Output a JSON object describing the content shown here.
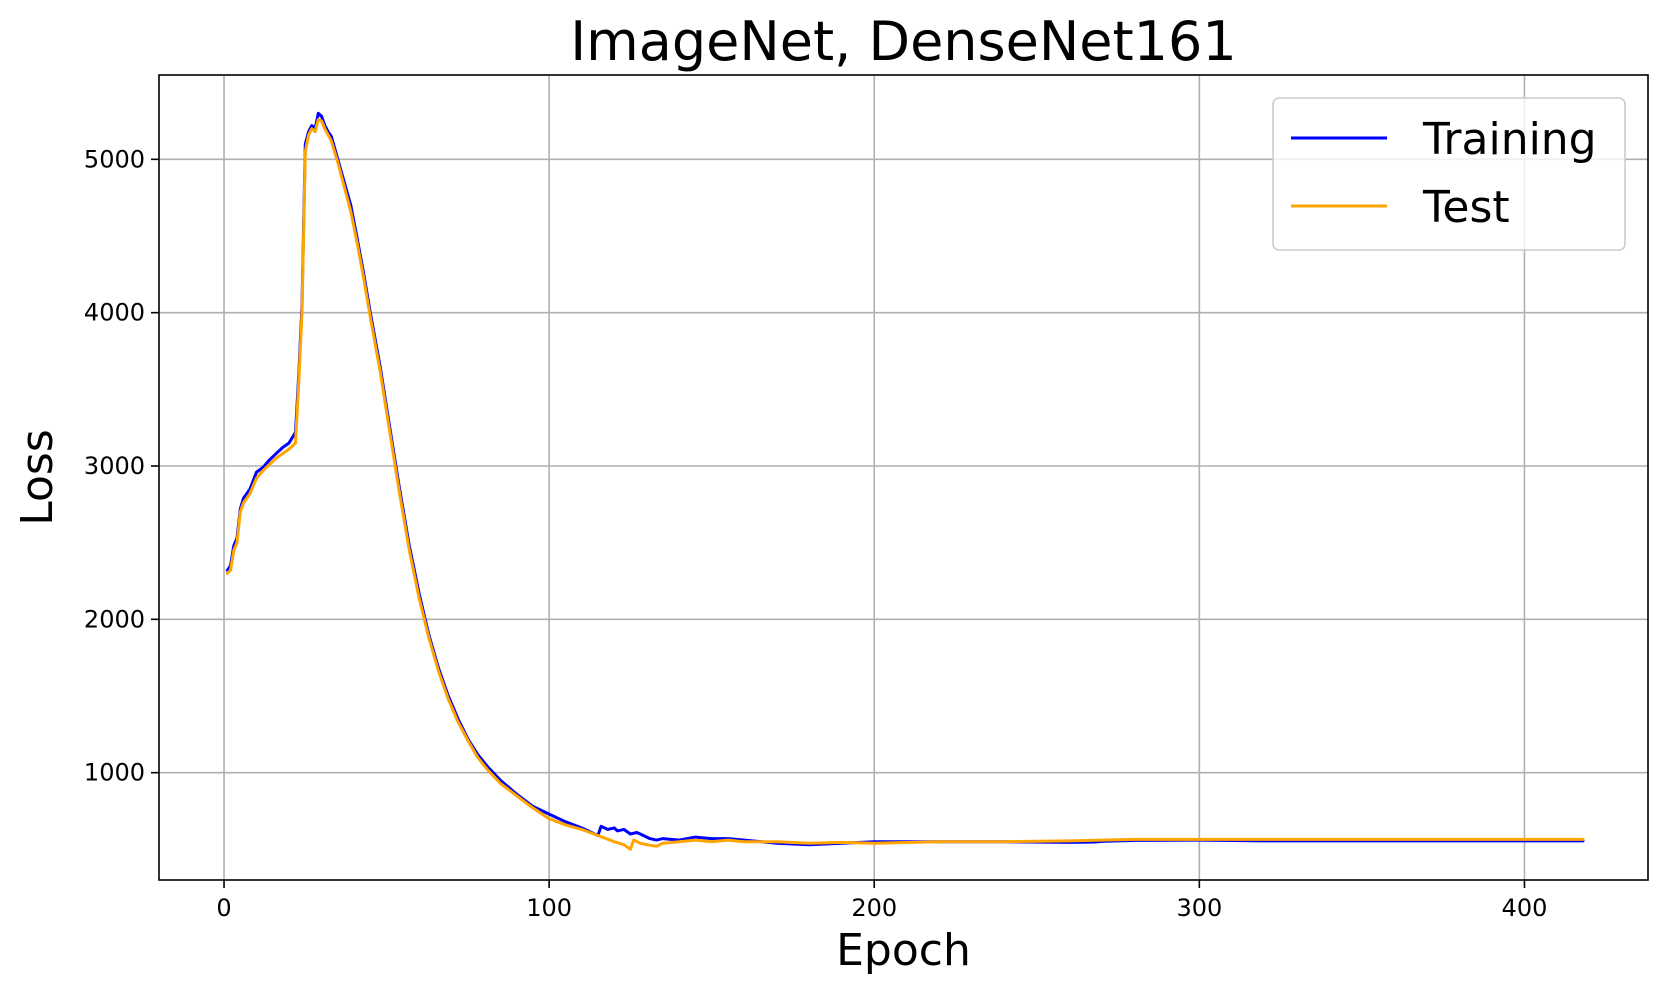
{
  "chart_data": {
    "type": "line",
    "title": "ImageNet, DenseNet161",
    "xlabel": "Epoch",
    "ylabel": "Loss",
    "xlim": [
      -20,
      438
    ],
    "ylim": [
      300,
      5550
    ],
    "xticks": [
      0,
      100,
      200,
      300,
      400
    ],
    "yticks": [
      1000,
      2000,
      3000,
      4000,
      5000
    ],
    "grid": true,
    "legend_position": "top-right",
    "series": [
      {
        "name": "Training",
        "color": "#0000ff",
        "x": [
          1,
          2,
          3,
          4,
          5,
          6,
          8,
          10,
          12,
          14,
          16,
          18,
          20,
          22,
          23,
          24,
          25,
          26,
          27,
          28,
          29,
          30,
          31,
          32,
          33,
          35,
          37,
          39,
          41,
          43,
          45,
          48,
          51,
          54,
          57,
          60,
          63,
          66,
          69,
          72,
          75,
          78,
          81,
          85,
          90,
          95,
          100,
          105,
          110,
          115,
          116,
          118,
          120,
          121,
          123,
          125,
          127,
          129,
          131,
          133,
          135,
          140,
          145,
          150,
          155,
          160,
          170,
          180,
          190,
          200,
          220,
          240,
          260,
          268,
          270,
          280,
          300,
          320,
          350,
          380,
          418
        ],
        "y": [
          2320,
          2350,
          2480,
          2530,
          2720,
          2790,
          2850,
          2960,
          2990,
          3040,
          3080,
          3120,
          3150,
          3220,
          3600,
          4050,
          5100,
          5180,
          5220,
          5200,
          5300,
          5280,
          5220,
          5180,
          5150,
          5000,
          4850,
          4700,
          4480,
          4250,
          4000,
          3650,
          3250,
          2850,
          2480,
          2170,
          1900,
          1680,
          1500,
          1350,
          1220,
          1120,
          1040,
          950,
          860,
          780,
          730,
          680,
          640,
          590,
          650,
          630,
          640,
          620,
          630,
          600,
          610,
          590,
          570,
          560,
          570,
          560,
          580,
          570,
          570,
          560,
          540,
          530,
          540,
          550,
          550,
          550,
          545,
          548,
          552,
          558,
          560,
          555,
          555,
          555,
          555
        ]
      },
      {
        "name": "Test",
        "color": "#ffa500",
        "x": [
          1,
          2,
          3,
          4,
          5,
          6,
          8,
          10,
          12,
          14,
          16,
          18,
          20,
          22,
          23,
          24,
          25,
          26,
          27,
          28,
          29,
          30,
          31,
          32,
          33,
          35,
          37,
          39,
          41,
          43,
          45,
          48,
          51,
          54,
          57,
          60,
          63,
          66,
          69,
          72,
          75,
          78,
          81,
          85,
          90,
          95,
          100,
          105,
          110,
          115,
          120,
          123,
          125,
          126,
          128,
          130,
          133,
          135,
          140,
          145,
          150,
          155,
          160,
          170,
          180,
          190,
          200,
          220,
          240,
          260,
          270,
          280,
          300,
          320,
          350,
          380,
          418
        ],
        "y": [
          2300,
          2320,
          2450,
          2500,
          2700,
          2760,
          2820,
          2920,
          2970,
          3010,
          3050,
          3080,
          3110,
          3150,
          3550,
          4000,
          5050,
          5160,
          5200,
          5180,
          5260,
          5250,
          5200,
          5160,
          5120,
          4980,
          4820,
          4660,
          4450,
          4220,
          3970,
          3620,
          3220,
          2820,
          2450,
          2140,
          1880,
          1660,
          1480,
          1330,
          1210,
          1100,
          1020,
          930,
          850,
          770,
          700,
          660,
          630,
          590,
          550,
          530,
          500,
          560,
          540,
          530,
          520,
          540,
          550,
          560,
          550,
          560,
          550,
          550,
          540,
          545,
          540,
          550,
          550,
          555,
          560,
          565,
          565,
          565,
          565,
          565,
          565
        ]
      }
    ]
  }
}
